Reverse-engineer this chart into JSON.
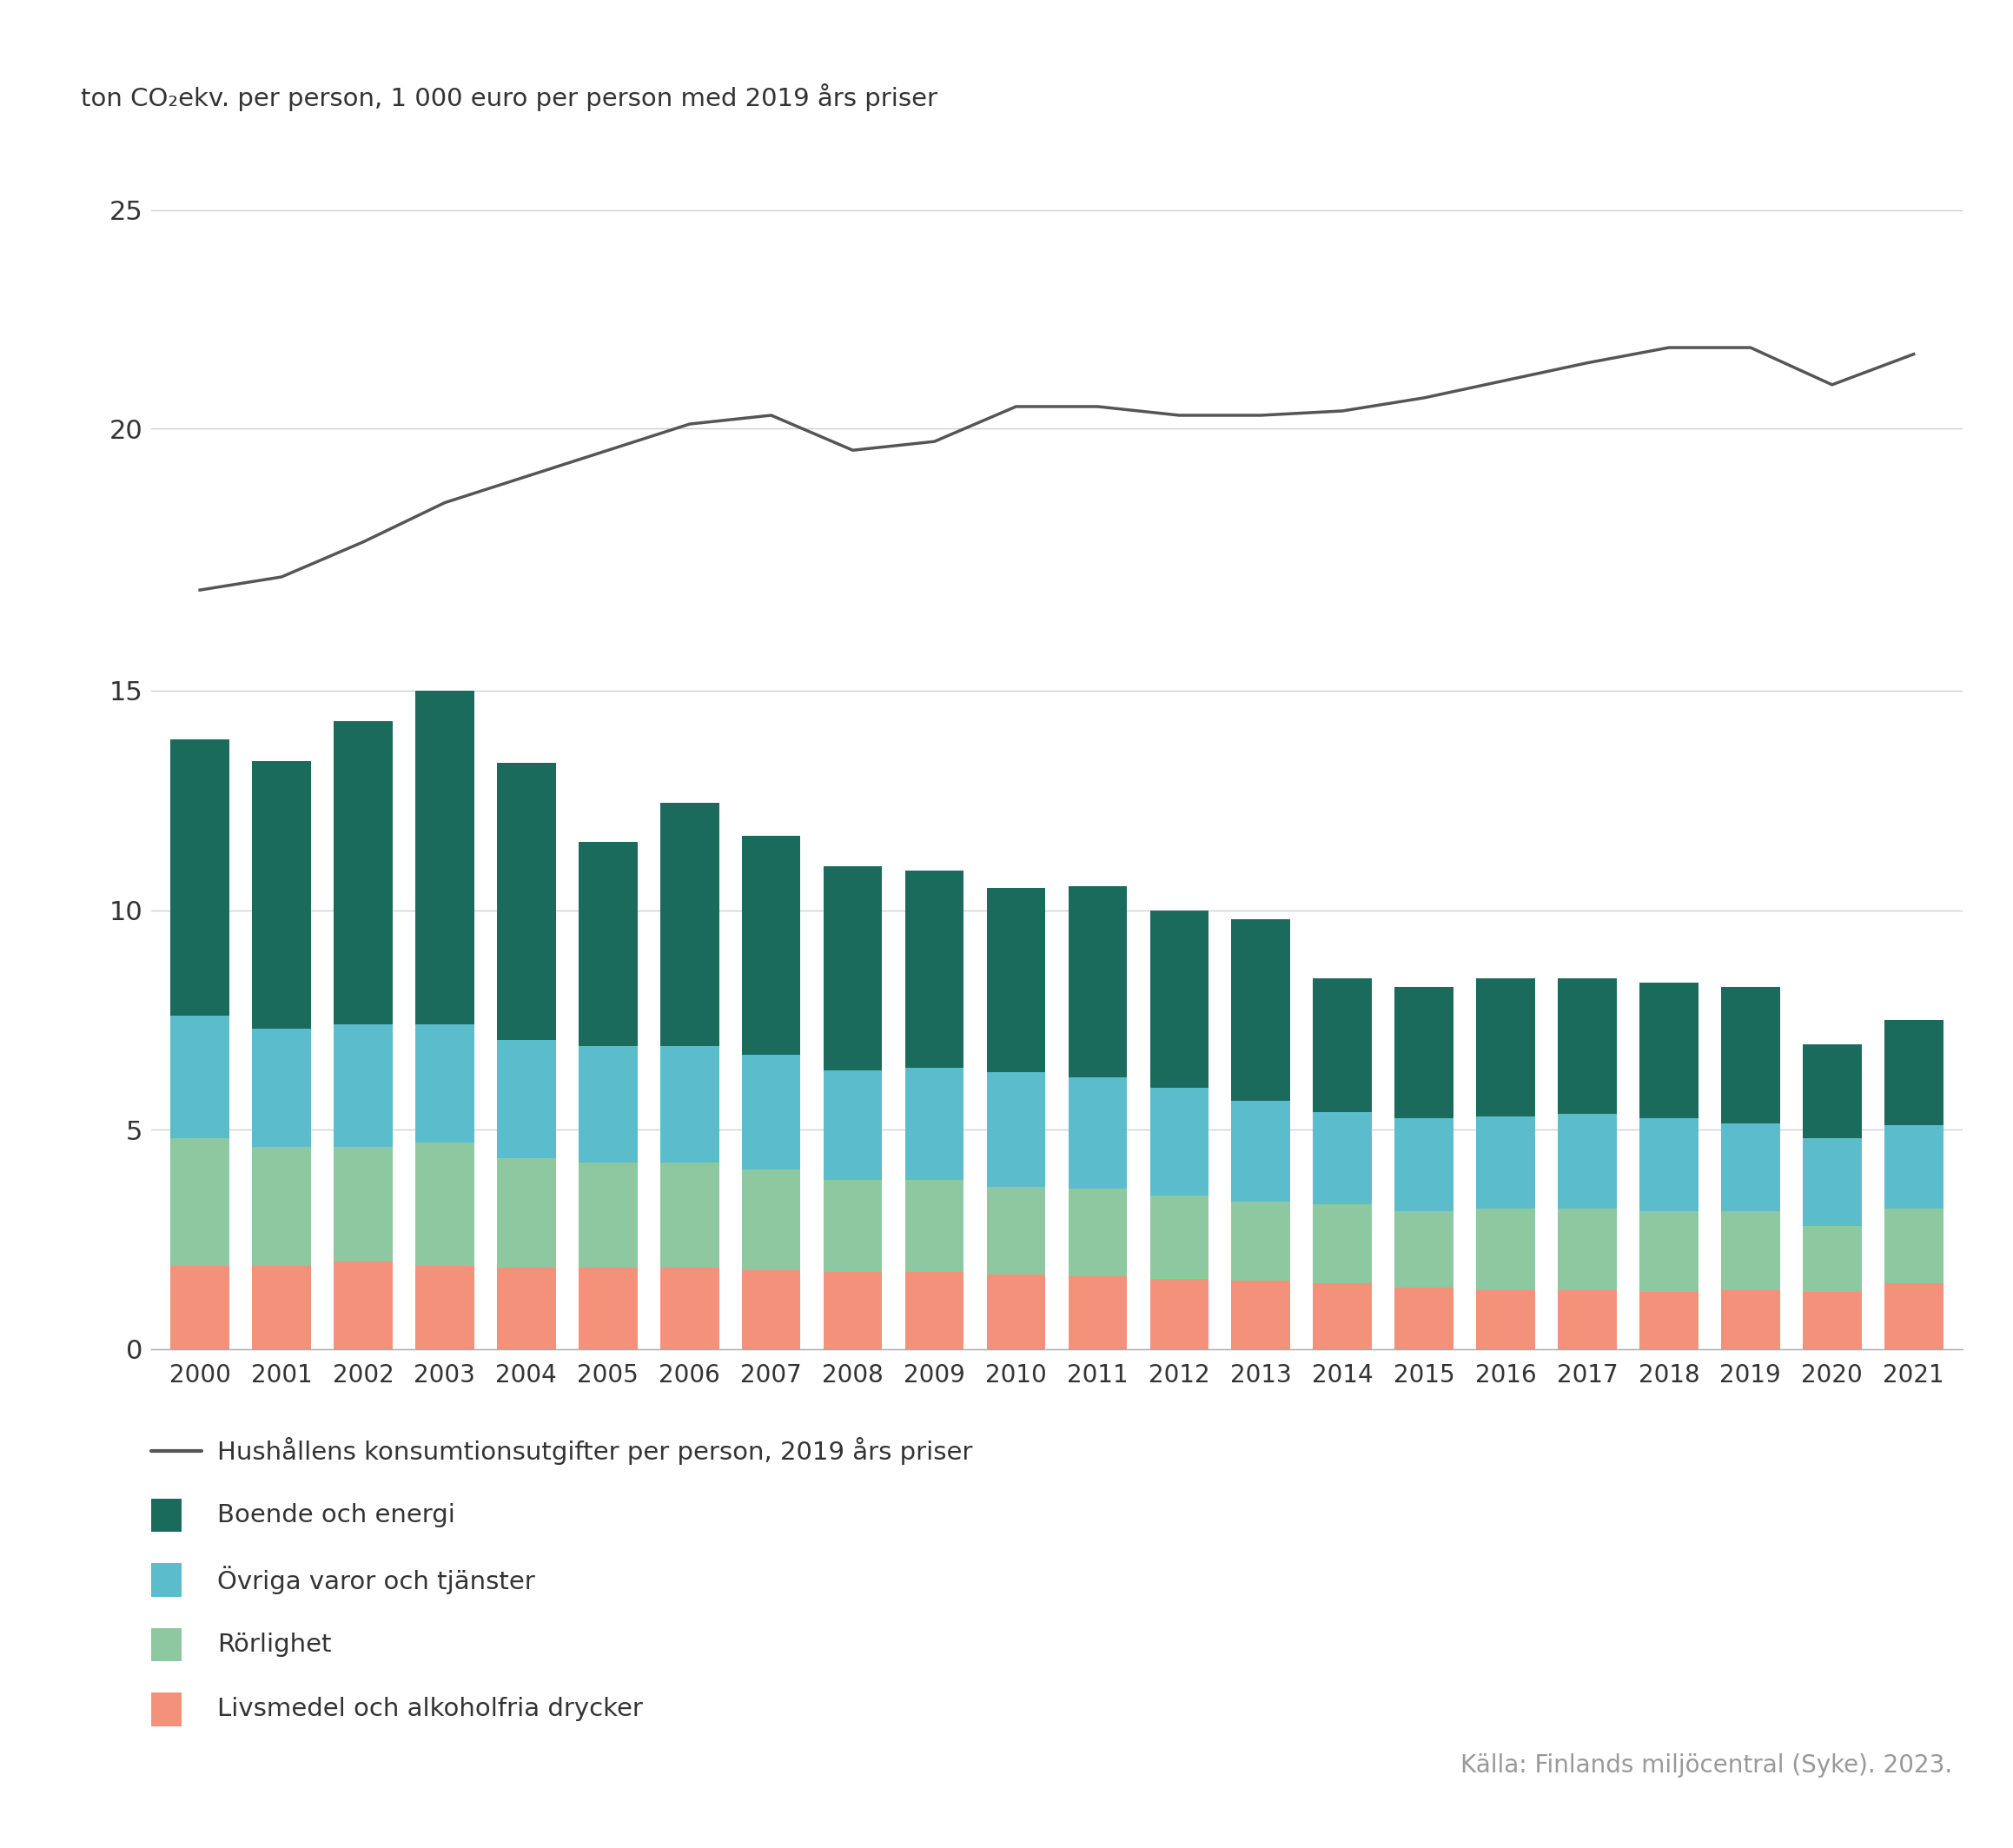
{
  "years": [
    2000,
    2001,
    2002,
    2003,
    2004,
    2005,
    2006,
    2007,
    2008,
    2009,
    2010,
    2011,
    2012,
    2013,
    2014,
    2015,
    2016,
    2017,
    2018,
    2019,
    2020,
    2021
  ],
  "livsmedel": [
    1.9,
    1.9,
    2.0,
    1.9,
    1.85,
    1.85,
    1.85,
    1.8,
    1.75,
    1.75,
    1.7,
    1.65,
    1.6,
    1.55,
    1.5,
    1.4,
    1.35,
    1.35,
    1.3,
    1.35,
    1.3,
    1.5
  ],
  "rorlighet": [
    2.9,
    2.7,
    2.6,
    2.8,
    2.5,
    2.4,
    2.4,
    2.3,
    2.1,
    2.1,
    2.0,
    2.0,
    1.9,
    1.8,
    1.8,
    1.75,
    1.85,
    1.85,
    1.85,
    1.8,
    1.5,
    1.7
  ],
  "ovriga": [
    2.8,
    2.7,
    2.8,
    2.7,
    2.7,
    2.65,
    2.65,
    2.6,
    2.5,
    2.55,
    2.6,
    2.55,
    2.45,
    2.3,
    2.1,
    2.1,
    2.1,
    2.15,
    2.1,
    2.0,
    2.0,
    1.9
  ],
  "boende": [
    6.3,
    6.1,
    6.9,
    7.6,
    6.3,
    4.65,
    5.55,
    5.0,
    4.65,
    4.5,
    4.2,
    4.35,
    4.05,
    4.15,
    3.05,
    3.0,
    3.15,
    3.1,
    3.1,
    3.1,
    2.15,
    2.4
  ],
  "konsumtion": [
    16.3,
    16.6,
    17.4,
    18.3,
    18.9,
    19.5,
    20.1,
    20.3,
    19.5,
    19.7,
    20.5,
    20.5,
    20.3,
    20.3,
    20.4,
    20.7,
    21.1,
    21.5,
    21.85,
    21.85,
    21.0,
    21.7
  ],
  "colors": {
    "livsmedel": "#F4917B",
    "rorlighet": "#8DC8A0",
    "ovriga": "#5BBCCC",
    "boende": "#1B6B5C"
  },
  "line_color": "#555555",
  "bar_width": 0.72,
  "grid_color": "#D0D0D0",
  "background_color": "#FFFFFF",
  "ylabel": "ton CO₂ekv. per person, 1 000 euro per person med 2019 års priser",
  "legend_line": "Hushållens konsumtionsutgifter per person, 2019 års priser",
  "legend_boende": "Boende och energi",
  "legend_ovriga": "Övriga varor och tjänster",
  "legend_rorlighet": "Rörlighet",
  "legend_livsmedel": "Livsmedel och alkoholfria drycker",
  "source_text": "Källa: Finlands miljöcentral (Syke). 2023."
}
